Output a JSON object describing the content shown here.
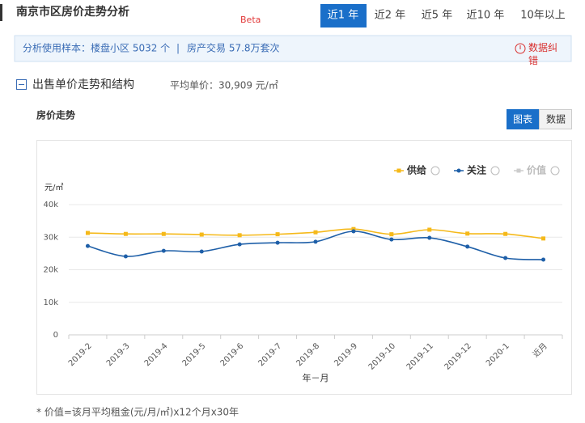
{
  "header": {
    "title": "南京市区房价走势分析",
    "badge": "Beta",
    "tabs": [
      "近1 年",
      "近2 年",
      "近5 年",
      "近10 年",
      "10年以上"
    ]
  },
  "info": {
    "sample": "分析使用样本：楼盘小区 5032 个",
    "separator": "|",
    "transactions": "房产交易 57.8万套次",
    "report": "数据纠错"
  },
  "section": {
    "title": "出售单价走势和结构",
    "average": "平均单价：30,909 元/㎡",
    "chart_title": "房价走势",
    "buttons": [
      "图表",
      "数据"
    ]
  },
  "chart_data": {
    "type": "line",
    "y_label": "元/㎡",
    "x_label": "年－月",
    "categories": [
      "2019-2",
      "2019-3",
      "2019-4",
      "2019-5",
      "2019-6",
      "2019-7",
      "2019-8",
      "2019-9",
      "2019-10",
      "2019-11",
      "2019-12",
      "2020-1",
      "近月"
    ],
    "series": [
      {
        "name": "供给",
        "color": "#f5b91a",
        "marker": "square",
        "values": [
          31300,
          31000,
          31000,
          30800,
          30600,
          30900,
          31500,
          32500,
          30900,
          32300,
          31100,
          31000,
          29600
        ]
      },
      {
        "name": "关注",
        "color": "#1e5fa8",
        "marker": "circle",
        "values": [
          27300,
          24100,
          25800,
          25600,
          27800,
          28300,
          28600,
          31800,
          29300,
          29800,
          27100,
          23600,
          23100
        ]
      }
    ],
    "inactive_legend": {
      "name": "价值",
      "color": "#cccccc"
    },
    "ylim": [
      0,
      40000
    ],
    "yticks": [
      0,
      {
        "value": 10000,
        "label": "10k"
      },
      {
        "value": 20000,
        "label": "20k"
      },
      {
        "value": 30000,
        "label": "30k"
      },
      {
        "value": 40000,
        "label": "40k"
      }
    ],
    "grid": true
  },
  "footnote": "* 价值=该月平均租金(元/月/㎡)x12个月x30年"
}
